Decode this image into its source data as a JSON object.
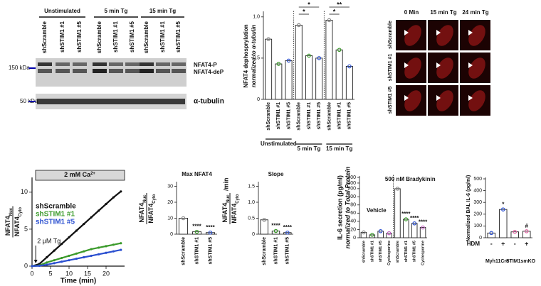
{
  "blot": {
    "groups": [
      "Unstimulated",
      "5 min Tg",
      "15 min Tg"
    ],
    "lanes": [
      "shScramble",
      "shSTIM1 #1",
      "shSTIM1 #5",
      "shScramble",
      "shSTIM1 #1",
      "shSTIM1 #5",
      "shScramble",
      "shSTIM1 #1",
      "shSTIM1 #5"
    ],
    "size_markers": [
      "150 kDa",
      "50 kDa"
    ],
    "band_labels": [
      "NFAT4-P",
      "NFAT4-deP"
    ],
    "loading_label": "α-tubulin"
  },
  "micrograph": {
    "columns": [
      "0 Min",
      "15 min Tg",
      "24 min Tg"
    ],
    "rows": [
      "shScramble",
      "shSTIM1 #1",
      "shSTIM1 #5"
    ]
  },
  "chart_data": [
    {
      "type": "bar",
      "ylabel": [
        "NFAT4 dephosprylation",
        "normalized to α-tubulin"
      ],
      "categories": [
        "shScramble",
        "shSTIM1 #1",
        "shSTIM1 #5",
        "shScramble",
        "shSTIM1 #1",
        "shSTIM1 #5",
        "shScramble",
        "shSTIM1 #1",
        "shSTIM1 #5"
      ],
      "values": [
        0.73,
        0.43,
        0.47,
        0.9,
        0.53,
        0.5,
        0.96,
        0.6,
        0.4
      ],
      "colors": [
        "#888888",
        "#3a9a2a",
        "#2a4fd0",
        "#888888",
        "#3a9a2a",
        "#2a4fd0",
        "#888888",
        "#3a9a2a",
        "#2a4fd0"
      ],
      "groups": [
        "Unstimulated",
        "5 min Tg",
        "15 min Tg"
      ],
      "significance": [
        "*",
        "*",
        "*",
        "**"
      ],
      "ylim": [
        0,
        1.05
      ],
      "yticks": [
        0,
        0.5,
        {
          "value": 1,
          "label": "1.0"
        }
      ]
    },
    {
      "type": "line",
      "x": [
        0,
        2,
        4,
        6,
        8,
        10,
        12,
        14,
        16,
        18,
        20,
        22,
        24
      ],
      "series": [
        {
          "name": "shScramble",
          "color": "#111111",
          "values": [
            0,
            0.3,
            1.2,
            2.1,
            3.0,
            3.9,
            4.8,
            5.7,
            6.6,
            7.5,
            8.4,
            9.3,
            10.1
          ]
        },
        {
          "name": "shSTIM1 #1",
          "color": "#3a9a2a",
          "values": [
            0,
            0.1,
            0.5,
            0.8,
            1.1,
            1.4,
            1.7,
            2.0,
            2.3,
            2.5,
            2.7,
            2.9,
            3.1
          ]
        },
        {
          "name": "shSTIM1 #5",
          "color": "#2a4fd0",
          "values": [
            0,
            0.05,
            0.2,
            0.4,
            0.6,
            0.8,
            1.0,
            1.2,
            1.4,
            1.6,
            1.8,
            2.0,
            2.2
          ]
        }
      ],
      "ylabel_frac": {
        "num": {
          "base": "NFAT4",
          "sub": "Nuc"
        },
        "den": {
          "base": "NFAT4",
          "sub": "Cyto"
        }
      },
      "xlabel": "Time (min)",
      "box_label": {
        "base": "2 mM Ca",
        "sup": "2+"
      },
      "arrow_label": "2 μM Tg",
      "arrow_x": 1,
      "xlim": [
        0,
        25
      ],
      "xticks": [
        0,
        5,
        10,
        15,
        20
      ],
      "ylim": [
        0,
        12
      ],
      "yticks": [
        0,
        5,
        10
      ]
    },
    {
      "type": "bar",
      "title": "Max NFAT4",
      "categories": [
        "shScramble",
        "shSTIM1 #1",
        "shSTIM1 #5"
      ],
      "values": [
        10,
        1.5,
        1
      ],
      "colors": [
        "#888888",
        "#3a9a2a",
        "#2a4fd0"
      ],
      "value_annotations": [
        null,
        "****",
        "****"
      ],
      "ylabel_frac": {
        "num": {
          "base": "NFAT4",
          "sub": "Nuc"
        },
        "den": {
          "base": "NFAT4",
          "sub": "Cyto"
        }
      },
      "ylim": [
        0,
        32
      ],
      "yticks": [
        0,
        10,
        20,
        30
      ]
    },
    {
      "type": "bar",
      "title": "Slope",
      "categories": [
        "shScramble",
        "shSTIM1 #1",
        "shSTIM1 #5"
      ],
      "values": [
        0.45,
        0.1,
        0.05
      ],
      "colors": [
        "#888888",
        "#3a9a2a",
        "#2a4fd0"
      ],
      "value_annotations": [
        null,
        "****",
        "****"
      ],
      "ylabel_frac": {
        "num": {
          "base": "NFAT4",
          "sub": "Nuc"
        },
        "den": {
          "base": "NFAT4",
          "sub": "Cyto"
        }
      },
      "ylabel_suffix": "/min",
      "ylim": [
        0,
        1.6
      ],
      "yticks": [
        0,
        0.5,
        {
          "value": 1,
          "label": "1.0"
        },
        1.5
      ]
    },
    {
      "type": "bar",
      "ylabel": [
        "IL-6 secretion (pg/ml)",
        "normalized to Total Protein"
      ],
      "categories": [
        "shScramble",
        "shSTIM1 #1",
        "shSTIM1 #5",
        "Cyclosporine",
        "shScramble",
        "shSTIM1 #1",
        "shSTIM1 #5",
        "Cyclosporine"
      ],
      "values": [
        13,
        7,
        16,
        11,
        200,
        45,
        35,
        25
      ],
      "colors": [
        "#888888",
        "#3a9a2a",
        "#2a4fd0",
        "#c060c0",
        "#888888",
        "#3a9a2a",
        "#2a4fd0",
        "#c060c0"
      ],
      "groups": [
        "Vehicle",
        "500 nM Bradykinin"
      ],
      "value_annotations": [
        null,
        null,
        null,
        null,
        null,
        "****",
        "****",
        "****"
      ],
      "ybreak": 100,
      "ylim": [
        0,
        400
      ],
      "yticks": [
        0,
        20,
        40,
        60,
        80,
        100,
        200,
        300,
        400
      ]
    },
    {
      "type": "bar",
      "ylabel": [
        "Normalized BAL IL-6 (pg/ml)"
      ],
      "category_axis_label": "HDM",
      "categories": [
        "-",
        "+",
        "-",
        "+"
      ],
      "values": [
        40,
        240,
        50,
        55
      ],
      "colors": [
        "#2a4fd0",
        "#2a4fd0",
        "#e060a0",
        "#e060a0"
      ],
      "groups": [
        "Myh11Cre",
        "STIM1smKO"
      ],
      "value_annotations": [
        null,
        "*",
        null,
        "#"
      ],
      "ylim": [
        0,
        500
      ],
      "yticks": [
        0,
        100,
        200,
        300,
        400,
        500
      ]
    }
  ]
}
